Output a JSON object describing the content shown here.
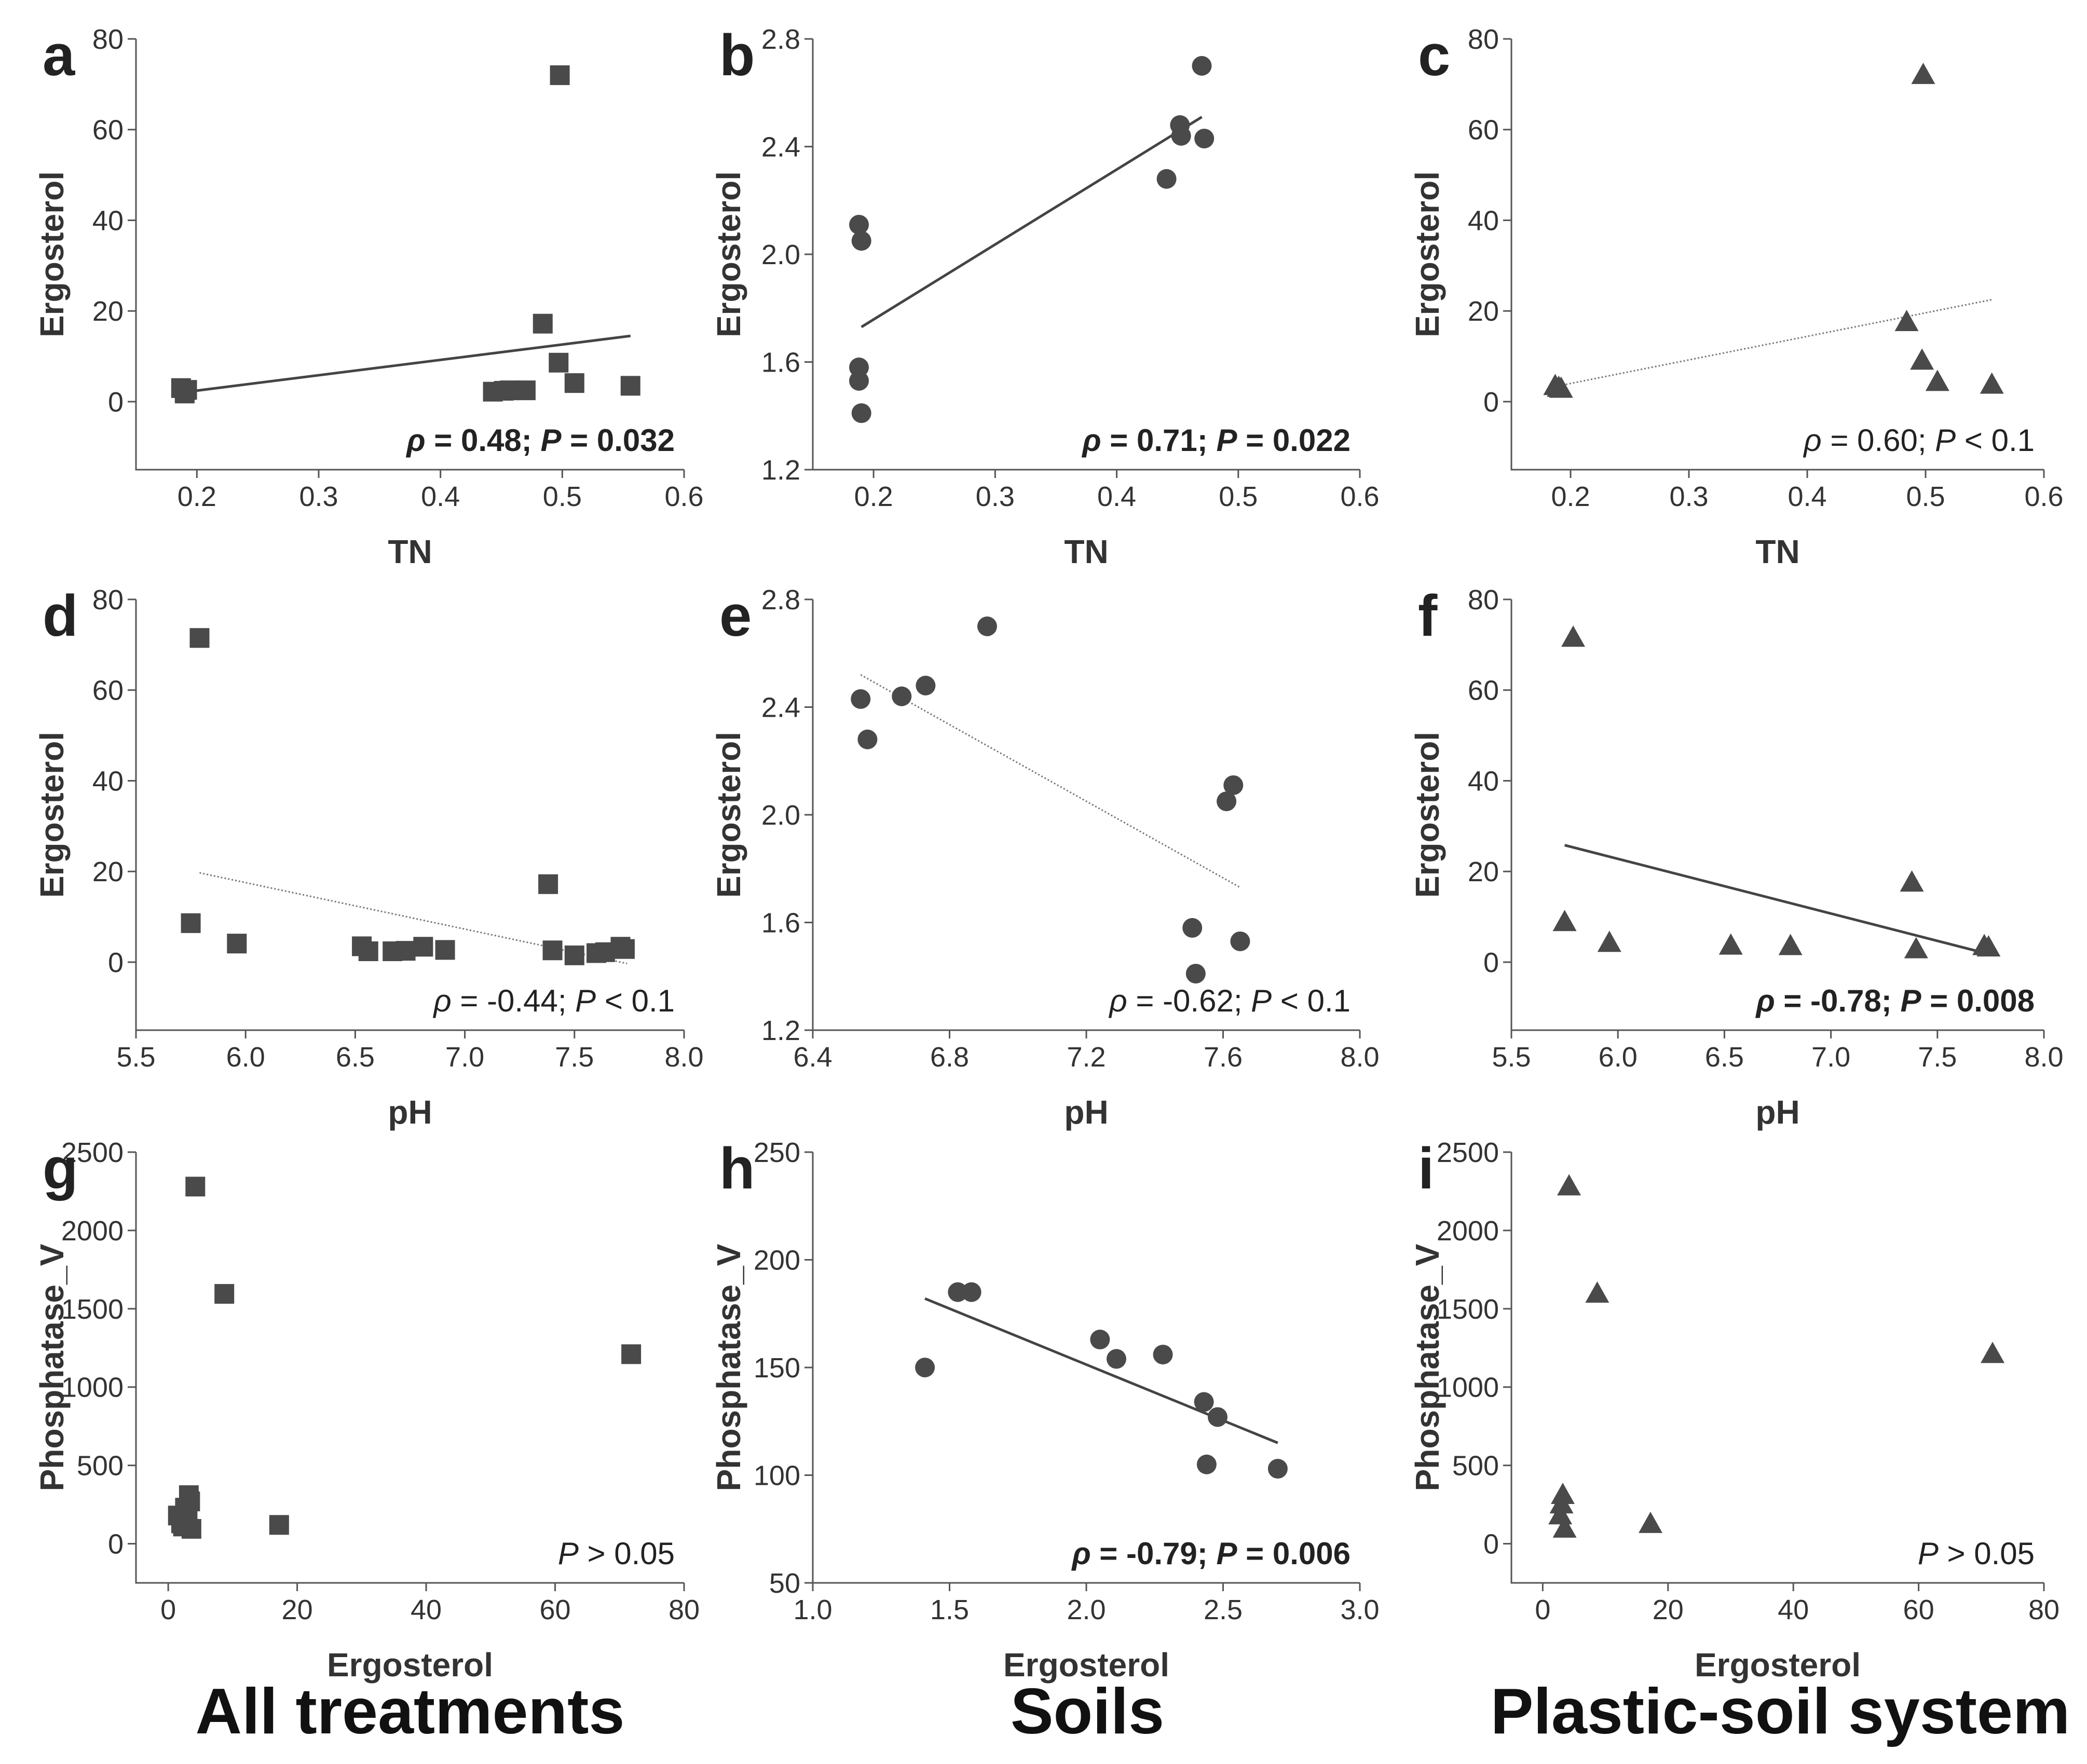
{
  "colors": {
    "marker": "#4a4a4a",
    "axis": "#555555",
    "text": "#333333"
  },
  "group_labels": [
    "All treatments",
    "Soils",
    "Plastic-soil system"
  ],
  "chart_data": [
    {
      "id": "a",
      "type": "scatter",
      "marker": "square",
      "xlabel": "TN",
      "ylabel": "Ergosterol",
      "xlim": [
        0.15,
        0.6
      ],
      "ylim": [
        -15,
        80
      ],
      "xticks": [
        0.2,
        0.3,
        0.4,
        0.5,
        0.6
      ],
      "xtick_labels": [
        "0.2",
        "0.3",
        "0.4",
        "0.5",
        "0.6"
      ],
      "yticks": [
        0,
        20,
        40,
        60,
        80
      ],
      "ytick_labels": [
        "0",
        "20",
        "40",
        "60",
        "80"
      ],
      "points": [
        [
          0.187,
          3.0
        ],
        [
          0.19,
          2.2
        ],
        [
          0.19,
          1.8
        ],
        [
          0.192,
          2.6
        ],
        [
          0.443,
          2.2
        ],
        [
          0.452,
          2.4
        ],
        [
          0.457,
          2.5
        ],
        [
          0.47,
          2.5
        ],
        [
          0.484,
          17.2
        ],
        [
          0.497,
          8.6
        ],
        [
          0.498,
          72
        ],
        [
          0.51,
          4.1
        ],
        [
          0.556,
          3.5
        ]
      ],
      "fit": {
        "x": [
          0.19,
          0.556
        ],
        "y": [
          2.1,
          14.5
        ],
        "style": "solid"
      },
      "annotation": {
        "rho": "ρ",
        "text": " = 0.48; ",
        "p": "P",
        "rest": " = 0.032",
        "bold": true
      }
    },
    {
      "id": "b",
      "type": "scatter",
      "marker": "circle",
      "xlabel": "TN",
      "ylabel": "Ergosterol",
      "xlim": [
        0.15,
        0.6
      ],
      "ylim": [
        1.2,
        2.8
      ],
      "xticks": [
        0.2,
        0.3,
        0.4,
        0.5,
        0.6
      ],
      "xtick_labels": [
        "0.2",
        "0.3",
        "0.4",
        "0.5",
        "0.6"
      ],
      "yticks": [
        1.2,
        1.6,
        2.0,
        2.4,
        2.8
      ],
      "ytick_labels": [
        "1.2",
        "1.6",
        "2.0",
        "2.4",
        "2.8"
      ],
      "points": [
        [
          0.188,
          2.11
        ],
        [
          0.19,
          2.05
        ],
        [
          0.188,
          1.58
        ],
        [
          0.188,
          1.53
        ],
        [
          0.19,
          1.41
        ],
        [
          0.441,
          2.28
        ],
        [
          0.452,
          2.48
        ],
        [
          0.453,
          2.44
        ],
        [
          0.47,
          2.7
        ],
        [
          0.472,
          2.43
        ]
      ],
      "fit": {
        "x": [
          0.19,
          0.47
        ],
        "y": [
          1.73,
          2.51
        ],
        "style": "solid"
      },
      "annotation": {
        "rho": "ρ",
        "text": " = 0.71; ",
        "p": "P",
        "rest": " = 0.022",
        "bold": true
      }
    },
    {
      "id": "c",
      "type": "scatter",
      "marker": "triangle",
      "xlabel": "TN",
      "ylabel": "Ergosterol",
      "xlim": [
        0.15,
        0.6
      ],
      "ylim": [
        -15,
        80
      ],
      "xticks": [
        0.2,
        0.3,
        0.4,
        0.5,
        0.6
      ],
      "xtick_labels": [
        "0.2",
        "0.3",
        "0.4",
        "0.5",
        "0.6"
      ],
      "yticks": [
        0,
        20,
        40,
        60,
        80
      ],
      "ytick_labels": [
        "0",
        "20",
        "40",
        "60",
        "80"
      ],
      "points": [
        [
          0.187,
          3.4
        ],
        [
          0.19,
          3.0
        ],
        [
          0.192,
          2.8
        ],
        [
          0.484,
          17.5
        ],
        [
          0.497,
          9.0
        ],
        [
          0.498,
          72
        ],
        [
          0.51,
          4.3
        ],
        [
          0.556,
          3.7
        ]
      ],
      "fit": {
        "x": [
          0.19,
          0.556
        ],
        "y": [
          3.5,
          22.5
        ],
        "style": "dotted"
      },
      "annotation": {
        "rho": "ρ",
        "text": " = 0.60; ",
        "p": "P",
        "rest": " < 0.1",
        "bold": false
      }
    },
    {
      "id": "d",
      "type": "scatter",
      "marker": "square",
      "xlabel": "pH",
      "ylabel": "Ergosterol",
      "xlim": [
        5.5,
        8.0
      ],
      "ylim": [
        -15,
        80
      ],
      "xticks": [
        5.5,
        6.0,
        6.5,
        7.0,
        7.5,
        8.0
      ],
      "xtick_labels": [
        "5.5",
        "6.0",
        "6.5",
        "7.0",
        "7.5",
        "8.0"
      ],
      "yticks": [
        0,
        20,
        40,
        60,
        80
      ],
      "ytick_labels": [
        "0",
        "20",
        "40",
        "60",
        "80"
      ],
      "points": [
        [
          5.75,
          8.6
        ],
        [
          5.79,
          71.5
        ],
        [
          5.96,
          4.1
        ],
        [
          6.53,
          3.5
        ],
        [
          6.56,
          2.4
        ],
        [
          6.67,
          2.4
        ],
        [
          6.73,
          2.5
        ],
        [
          6.81,
          3.4
        ],
        [
          6.91,
          2.7
        ],
        [
          7.38,
          17.2
        ],
        [
          7.4,
          2.6
        ],
        [
          7.5,
          1.5
        ],
        [
          7.6,
          2.0
        ],
        [
          7.64,
          2.2
        ],
        [
          7.71,
          3.4
        ],
        [
          7.73,
          2.9
        ]
      ],
      "fit": {
        "x": [
          5.79,
          7.74
        ],
        "y": [
          19.7,
          -0.3
        ],
        "style": "dotted"
      },
      "annotation": {
        "rho": "ρ",
        "text": " = -0.44; ",
        "p": "P",
        "rest": " < 0.1",
        "bold": false
      }
    },
    {
      "id": "e",
      "type": "scatter",
      "marker": "circle",
      "xlabel": "pH",
      "ylabel": "Ergosterol",
      "xlim": [
        6.4,
        8.0
      ],
      "ylim": [
        1.2,
        2.8
      ],
      "xticks": [
        6.4,
        6.8,
        7.2,
        7.6,
        8.0
      ],
      "xtick_labels": [
        "6.4",
        "6.8",
        "7.2",
        "7.6",
        "8.0"
      ],
      "yticks": [
        1.2,
        1.6,
        2.0,
        2.4,
        2.8
      ],
      "ytick_labels": [
        "1.2",
        "1.6",
        "2.0",
        "2.4",
        "2.8"
      ],
      "points": [
        [
          6.54,
          2.43
        ],
        [
          6.56,
          2.28
        ],
        [
          6.66,
          2.44
        ],
        [
          6.73,
          2.48
        ],
        [
          6.91,
          2.7
        ],
        [
          7.51,
          1.58
        ],
        [
          7.52,
          1.41
        ],
        [
          7.61,
          2.05
        ],
        [
          7.63,
          2.11
        ],
        [
          7.65,
          1.53
        ]
      ],
      "fit": {
        "x": [
          6.54,
          7.65
        ],
        "y": [
          2.52,
          1.73
        ],
        "style": "dotted"
      },
      "annotation": {
        "rho": "ρ",
        "text": " = -0.62; ",
        "p": "P",
        "rest": " < 0.1",
        "bold": false
      }
    },
    {
      "id": "f",
      "type": "scatter",
      "marker": "triangle",
      "xlabel": "pH",
      "ylabel": "Ergosterol",
      "xlim": [
        5.5,
        8.0
      ],
      "ylim": [
        -15,
        80
      ],
      "xticks": [
        5.5,
        6.0,
        6.5,
        7.0,
        7.5,
        8.0
      ],
      "xtick_labels": [
        "5.5",
        "6.0",
        "6.5",
        "7.0",
        "7.5",
        "8.0"
      ],
      "yticks": [
        0,
        20,
        40,
        60,
        80
      ],
      "ytick_labels": [
        "0",
        "20",
        "40",
        "60",
        "80"
      ],
      "points": [
        [
          5.75,
          8.8
        ],
        [
          5.79,
          71.5
        ],
        [
          5.96,
          4.2
        ],
        [
          6.53,
          3.6
        ],
        [
          6.81,
          3.5
        ],
        [
          7.38,
          17.5
        ],
        [
          7.4,
          2.8
        ],
        [
          7.72,
          3.5
        ],
        [
          7.74,
          3.2
        ]
      ],
      "fit": {
        "x": [
          5.75,
          7.74
        ],
        "y": [
          25.8,
          1.8
        ],
        "style": "solid"
      },
      "annotation": {
        "rho": "ρ",
        "text": " = -0.78; ",
        "p": "P",
        "rest": " = 0.008",
        "bold": true
      }
    },
    {
      "id": "g",
      "type": "scatter",
      "marker": "square",
      "xlabel": "Ergosterol",
      "ylabel": "Phosphatase_V",
      "xlim": [
        -5,
        80
      ],
      "ylim": [
        -250,
        2500
      ],
      "xticks": [
        0,
        20,
        40,
        60,
        80
      ],
      "xtick_labels": [
        "0",
        "20",
        "40",
        "60",
        "80"
      ],
      "yticks": [
        0,
        500,
        1000,
        1500,
        2000,
        2500
      ],
      "ytick_labels": [
        "0",
        "500",
        "1000",
        "1500",
        "2000",
        "2500"
      ],
      "points": [
        [
          1.5,
          180
        ],
        [
          2.0,
          130
        ],
        [
          2.3,
          110
        ],
        [
          2.6,
          230
        ],
        [
          2.8,
          160
        ],
        [
          3.0,
          200
        ],
        [
          3.2,
          310
        ],
        [
          3.4,
          270
        ],
        [
          3.6,
          95
        ],
        [
          4.2,
          2280
        ],
        [
          8.7,
          1595
        ],
        [
          17.2,
          120
        ],
        [
          71.8,
          1210
        ]
      ],
      "fit": null,
      "annotation": {
        "rho": "",
        "text": "",
        "p": "P",
        "rest": " > 0.05",
        "bold": false
      }
    },
    {
      "id": "h",
      "type": "scatter",
      "marker": "circle",
      "xlabel": "Ergosterol",
      "ylabel": "Phosphatase_V",
      "xlim": [
        1.0,
        3.0
      ],
      "ylim": [
        50,
        250
      ],
      "xticks": [
        1.0,
        1.5,
        2.0,
        2.5,
        3.0
      ],
      "xtick_labels": [
        "1.0",
        "1.5",
        "2.0",
        "2.5",
        "3.0"
      ],
      "yticks": [
        50,
        100,
        150,
        200,
        250
      ],
      "ytick_labels": [
        "50",
        "100",
        "150",
        "200",
        "250"
      ],
      "points": [
        [
          1.41,
          150
        ],
        [
          1.53,
          185
        ],
        [
          1.58,
          185
        ],
        [
          2.05,
          163
        ],
        [
          2.11,
          154
        ],
        [
          2.28,
          156
        ],
        [
          2.43,
          134
        ],
        [
          2.44,
          105
        ],
        [
          2.48,
          127
        ],
        [
          2.7,
          103
        ]
      ],
      "fit": {
        "x": [
          1.41,
          2.7
        ],
        "y": [
          182,
          115
        ],
        "style": "solid"
      },
      "annotation": {
        "rho": "ρ",
        "text": " = -0.79; ",
        "p": "P",
        "rest": " = 0.006",
        "bold": true
      }
    },
    {
      "id": "i",
      "type": "scatter",
      "marker": "triangle",
      "xlabel": "Ergosterol",
      "ylabel": "Phosphatase_V",
      "xlim": [
        -5,
        80
      ],
      "ylim": [
        -250,
        2500
      ],
      "xticks": [
        0,
        20,
        40,
        60,
        80
      ],
      "xtick_labels": [
        "0",
        "20",
        "40",
        "60",
        "80"
      ],
      "yticks": [
        0,
        500,
        1000,
        1500,
        2000,
        2500
      ],
      "ytick_labels": [
        "0",
        "500",
        "1000",
        "1500",
        "2000",
        "2500"
      ],
      "points": [
        [
          2.8,
          180
        ],
        [
          3.0,
          250
        ],
        [
          3.2,
          310
        ],
        [
          3.5,
          95
        ],
        [
          4.2,
          2280
        ],
        [
          8.7,
          1595
        ],
        [
          17.2,
          125
        ],
        [
          71.8,
          1210
        ]
      ],
      "fit": null,
      "annotation": {
        "rho": "",
        "text": "",
        "p": "P",
        "rest": " > 0.05",
        "bold": false
      }
    }
  ]
}
